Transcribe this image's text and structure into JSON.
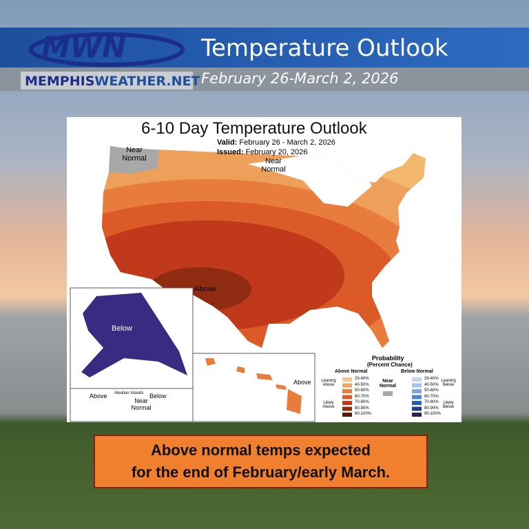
{
  "header": {
    "logo": "MWN",
    "site_part1": "MEMPHIS",
    "site_part2": "WEATHER.NET",
    "title": "Temperature Outlook",
    "subtitle": "February 26-March 2, 2026"
  },
  "map": {
    "title": "6-10 Day Temperature Outlook",
    "valid_label": "Valid:",
    "valid": "February 26 - March 2, 2026",
    "issued_label": "Issued:",
    "issued": "February 20, 2026",
    "labels": {
      "northwest": "Near Normal",
      "north": "Near Normal",
      "southwest": "Above",
      "alaska": "Below",
      "aleutian_above": "Above",
      "aleutian_near": "Near Normal",
      "aleutian_below": "Below",
      "aleutian_name": "Aleutian Islands",
      "hawaii": "Above"
    }
  },
  "legend": {
    "title": "Probability",
    "subtitle": "(Percent Chance)",
    "above_header": "Above Normal",
    "below_header": "Below Normal",
    "above_ranges": [
      "33-40%",
      "40-50%",
      "50-60%",
      "60-70%",
      "70-80%",
      "80-90%",
      "90-100%"
    ],
    "below_ranges": [
      "33-40%",
      "40-50%",
      "50-60%",
      "60-70%",
      "70-80%",
      "80-90%",
      "90-100%"
    ],
    "leaning_above": "Leaning Above",
    "likely_above": "Likely Above",
    "near_normal": "Near Normal",
    "leaning_below": "Leaning Below",
    "likely_below": "Likely Below"
  },
  "caption": {
    "line1": "Above normal temps expected",
    "line2": "for the end of February/early March."
  }
}
